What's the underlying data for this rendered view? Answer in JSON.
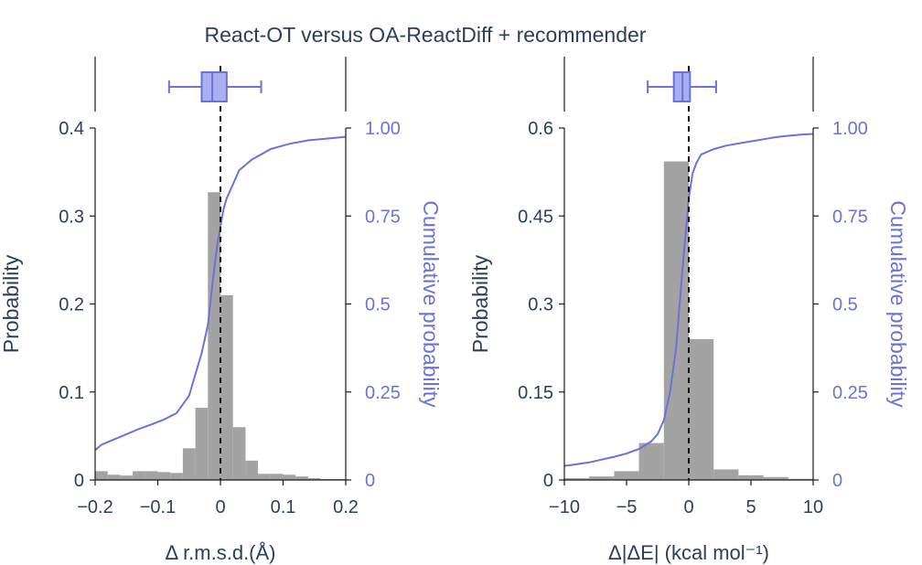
{
  "title": "React-OT versus OA-ReactDiff + recommender",
  "colors": {
    "text": "#2c3e5c",
    "cumulative": "#6b73d9",
    "box_fill": "#a9aff0",
    "bars": "#a3a3a3",
    "axis": "#1a1a1a"
  },
  "chart_data": [
    {
      "type": "bar",
      "subtype": "histogram+cdf+boxplot",
      "xlabel": "Δ r.m.s.d.(Å)",
      "ylabel": "Probability",
      "y2label": "Cumulative probability",
      "xlim": [
        -0.2,
        0.2
      ],
      "ylim": [
        0,
        0.4
      ],
      "y2lim": [
        0,
        1
      ],
      "xticks": [
        "−0.2",
        "−0.1",
        "0",
        "0.1",
        "0.2"
      ],
      "xtick_values": [
        -0.2,
        -0.1,
        0,
        0.1,
        0.2
      ],
      "yticks": [
        "0",
        "0.1",
        "0.2",
        "0.3",
        "0.4"
      ],
      "ytick_values": [
        0,
        0.1,
        0.2,
        0.3,
        0.4
      ],
      "y2ticks": [
        "0",
        "0.25",
        "0.5",
        "0.75",
        "1.00"
      ],
      "y2tick_values": [
        0,
        0.25,
        0.5,
        0.75,
        1.0
      ],
      "reference_line_x": 0,
      "histogram": {
        "bin_edges": [
          -0.2,
          -0.18,
          -0.16,
          -0.14,
          -0.12,
          -0.1,
          -0.08,
          -0.06,
          -0.04,
          -0.02,
          0,
          0.02,
          0.04,
          0.06,
          0.08,
          0.1,
          0.12,
          0.14,
          0.16,
          0.18,
          0.2
        ],
        "values": [
          0.01,
          0.006,
          0.005,
          0.01,
          0.01,
          0.009,
          0.008,
          0.036,
          0.082,
          0.327,
          0.21,
          0.06,
          0.022,
          0.007,
          0.007,
          0.006,
          0.004,
          0.002,
          0.001,
          0.001
        ]
      },
      "cumulative": {
        "x": [
          -0.2,
          -0.19,
          -0.17,
          -0.15,
          -0.13,
          -0.11,
          -0.09,
          -0.07,
          -0.05,
          -0.04,
          -0.03,
          -0.02,
          -0.015,
          -0.01,
          -0.005,
          0,
          0.005,
          0.01,
          0.02,
          0.03,
          0.05,
          0.08,
          0.11,
          0.14,
          0.17,
          0.2
        ],
        "y": [
          0.085,
          0.1,
          0.115,
          0.13,
          0.145,
          0.158,
          0.172,
          0.19,
          0.24,
          0.3,
          0.36,
          0.44,
          0.52,
          0.6,
          0.67,
          0.72,
          0.77,
          0.8,
          0.84,
          0.88,
          0.91,
          0.94,
          0.955,
          0.965,
          0.97,
          0.975
        ]
      },
      "boxplot": {
        "whisker_low": -0.082,
        "q1": -0.03,
        "median": -0.013,
        "q3": 0.01,
        "whisker_high": 0.065
      }
    },
    {
      "type": "bar",
      "subtype": "histogram+cdf+boxplot",
      "xlabel": "Δ|ΔE| (kcal mol⁻¹)",
      "ylabel": "Probability",
      "y2label": "Cumulative probability",
      "xlim": [
        -10,
        10
      ],
      "ylim": [
        0,
        0.6
      ],
      "y2lim": [
        0,
        1
      ],
      "xticks": [
        "−10",
        "−5",
        "0",
        "5",
        "10"
      ],
      "xtick_values": [
        -10,
        -5,
        0,
        5,
        10
      ],
      "yticks": [
        "0",
        "0.15",
        "0.3",
        "0.45",
        "0.6"
      ],
      "ytick_values": [
        0,
        0.15,
        0.3,
        0.45,
        0.6
      ],
      "y2ticks": [
        "0",
        "0.25",
        "0.5",
        "0.75",
        "1.00"
      ],
      "y2tick_values": [
        0,
        0.25,
        0.5,
        0.75,
        1.0
      ],
      "reference_line_x": 0,
      "histogram": {
        "bin_edges": [
          -10,
          -8,
          -6,
          -4,
          -2,
          0,
          2,
          4,
          6,
          8,
          10
        ],
        "values": [
          0.003,
          0.006,
          0.015,
          0.063,
          0.543,
          0.24,
          0.018,
          0.008,
          0.005,
          0.002
        ]
      },
      "cumulative": {
        "x": [
          -10,
          -9,
          -8,
          -7,
          -6,
          -5,
          -4,
          -3,
          -2.5,
          -2,
          -1.5,
          -1,
          -0.8,
          -0.5,
          -0.2,
          0,
          0.3,
          0.6,
          1,
          2,
          3,
          4,
          5,
          6,
          7,
          8,
          9,
          10
        ],
        "y": [
          0.04,
          0.045,
          0.05,
          0.058,
          0.066,
          0.075,
          0.088,
          0.11,
          0.13,
          0.17,
          0.25,
          0.38,
          0.47,
          0.6,
          0.72,
          0.8,
          0.87,
          0.9,
          0.925,
          0.94,
          0.95,
          0.956,
          0.962,
          0.968,
          0.974,
          0.978,
          0.981,
          0.983
        ]
      },
      "boxplot": {
        "whisker_low": -3.3,
        "q1": -1.2,
        "median": -0.5,
        "q3": 0.1,
        "whisker_high": 2.2
      }
    }
  ]
}
